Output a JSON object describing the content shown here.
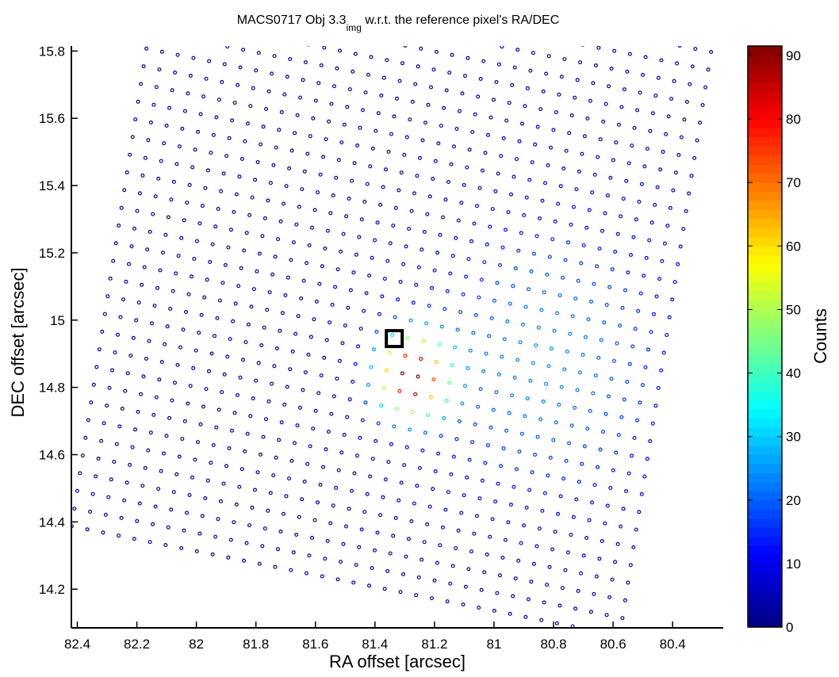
{
  "chart_data": {
    "type": "scatter",
    "title": {
      "prefix": "MACS0717 Obj 3.3",
      "subscript": "img",
      "suffix": " w.r.t. the reference pixel's RA/DEC"
    },
    "xlabel": "RA offset [arcsec]",
    "ylabel": "DEC offset [arcsec]",
    "xlim": [
      82.42,
      80.23
    ],
    "ylim": [
      14.085,
      15.815
    ],
    "x_reversed": true,
    "x_ticks": [
      "82.4",
      "82.2",
      "82",
      "81.8",
      "81.6",
      "81.4",
      "81.2",
      "81",
      "80.8",
      "80.6",
      "80.4"
    ],
    "y_ticks": [
      "14.2",
      "14.4",
      "14.6",
      "14.8",
      "15",
      "15.2",
      "15.4",
      "15.6",
      "15.8"
    ],
    "grid": false,
    "marker": "small open circle, colored by counts",
    "grid_layout": {
      "description": "Pixels sampled on a regular lattice rotated ~10 degrees; 36 columns x 40 rows",
      "origin_ra": 82.419,
      "origin_dec": 14.387,
      "col_step": [
        -0.0526,
        -0.0093
      ],
      "row_step": [
        -0.0093,
        0.0526
      ],
      "n_cols": 36,
      "n_rows": 40
    },
    "peak": {
      "ra": 81.276,
      "dec": 14.835,
      "counts": 91
    },
    "background_counts": 2,
    "colorbar": {
      "label": "Counts",
      "range": [
        0,
        91.5
      ],
      "ticks": [
        "0",
        "10",
        "20",
        "30",
        "40",
        "50",
        "60",
        "70",
        "80",
        "90"
      ],
      "colormap": "jet"
    },
    "reference_marker": {
      "ra": 81.335,
      "dec": 14.945,
      "shape": "square"
    },
    "colors": {
      "marker_edge": "#000000",
      "axis": "#000000"
    }
  }
}
